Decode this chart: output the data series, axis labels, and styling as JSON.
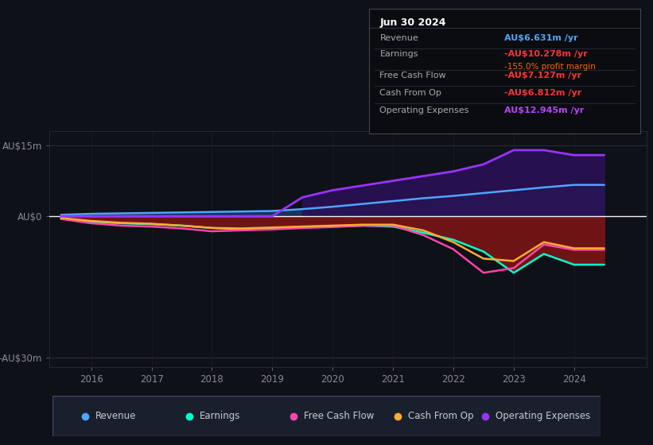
{
  "bg_color": "#0e1117",
  "plot_bg_color": "#0e1117",
  "title_box": {
    "date": "Jun 30 2024",
    "rows": [
      {
        "label": "Revenue",
        "value": "AU$6.631m",
        "value_color": "#4da6ff",
        "suffix": " /yr",
        "sub": null,
        "sub_color": null
      },
      {
        "label": "Earnings",
        "value": "-AU$10.278m",
        "value_color": "#ff3333",
        "suffix": " /yr",
        "sub": "-155.0% profit margin",
        "sub_color": "#ff6600"
      },
      {
        "label": "Free Cash Flow",
        "value": "-AU$7.127m",
        "value_color": "#ff3333",
        "suffix": " /yr",
        "sub": null,
        "sub_color": null
      },
      {
        "label": "Cash From Op",
        "value": "-AU$6.812m",
        "value_color": "#ff3333",
        "suffix": " /yr",
        "sub": null,
        "sub_color": null
      },
      {
        "label": "Operating Expenses",
        "value": "AU$12.945m",
        "value_color": "#bb44ff",
        "suffix": " /yr",
        "sub": null,
        "sub_color": null
      }
    ]
  },
  "years": [
    2015.5,
    2016.0,
    2016.5,
    2017.0,
    2017.5,
    2018.0,
    2018.5,
    2019.0,
    2019.5,
    2020.0,
    2020.5,
    2021.0,
    2021.5,
    2022.0,
    2022.5,
    2023.0,
    2023.5,
    2024.0,
    2024.5
  ],
  "revenue": [
    0.3,
    0.5,
    0.6,
    0.7,
    0.8,
    0.9,
    1.0,
    1.1,
    1.5,
    2.0,
    2.6,
    3.2,
    3.8,
    4.3,
    4.9,
    5.5,
    6.1,
    6.631,
    6.631
  ],
  "earnings": [
    -0.5,
    -1.2,
    -1.5,
    -1.7,
    -2.0,
    -2.5,
    -2.8,
    -2.6,
    -2.4,
    -2.2,
    -2.0,
    -2.2,
    -3.5,
    -5.0,
    -7.5,
    -12.0,
    -8.0,
    -10.278,
    -10.278
  ],
  "free_cash_flow": [
    -0.6,
    -1.5,
    -2.0,
    -2.2,
    -2.6,
    -3.2,
    -3.0,
    -2.8,
    -2.5,
    -2.3,
    -2.0,
    -2.0,
    -4.0,
    -7.0,
    -12.0,
    -11.0,
    -6.0,
    -7.127,
    -7.127
  ],
  "cash_from_op": [
    -0.4,
    -1.0,
    -1.4,
    -1.6,
    -2.0,
    -2.5,
    -2.6,
    -2.4,
    -2.2,
    -2.0,
    -1.8,
    -1.8,
    -3.0,
    -5.5,
    -9.0,
    -9.5,
    -5.5,
    -6.812,
    -6.812
  ],
  "op_expenses": [
    0.0,
    0.0,
    0.0,
    0.0,
    0.0,
    0.0,
    0.0,
    0.0,
    4.0,
    5.5,
    6.5,
    7.5,
    8.5,
    9.5,
    11.0,
    14.0,
    14.0,
    12.945,
    12.945
  ],
  "revenue_color": "#4da6ff",
  "earnings_color": "#00ffcc",
  "fcf_color": "#ff44aa",
  "cfo_color": "#ffaa33",
  "opex_color": "#9933ff",
  "fill_revenue_color": "#1a3a6a",
  "fill_earnings_color": "#7a1515",
  "fill_opex_color": "#2a1055",
  "ylim": [
    -32,
    18
  ],
  "yticks": [
    -30,
    0,
    15
  ],
  "ytick_labels": [
    "-AU$30m",
    "AU$0",
    "AU$15m"
  ],
  "xlim": [
    2015.3,
    2025.2
  ],
  "xticks": [
    2016,
    2017,
    2018,
    2019,
    2020,
    2021,
    2022,
    2023,
    2024
  ],
  "legend_items": [
    {
      "label": "Revenue",
      "color": "#4da6ff"
    },
    {
      "label": "Earnings",
      "color": "#00ffcc"
    },
    {
      "label": "Free Cash Flow",
      "color": "#ff44aa"
    },
    {
      "label": "Cash From Op",
      "color": "#ffaa33"
    },
    {
      "label": "Operating Expenses",
      "color": "#9933ff"
    }
  ]
}
